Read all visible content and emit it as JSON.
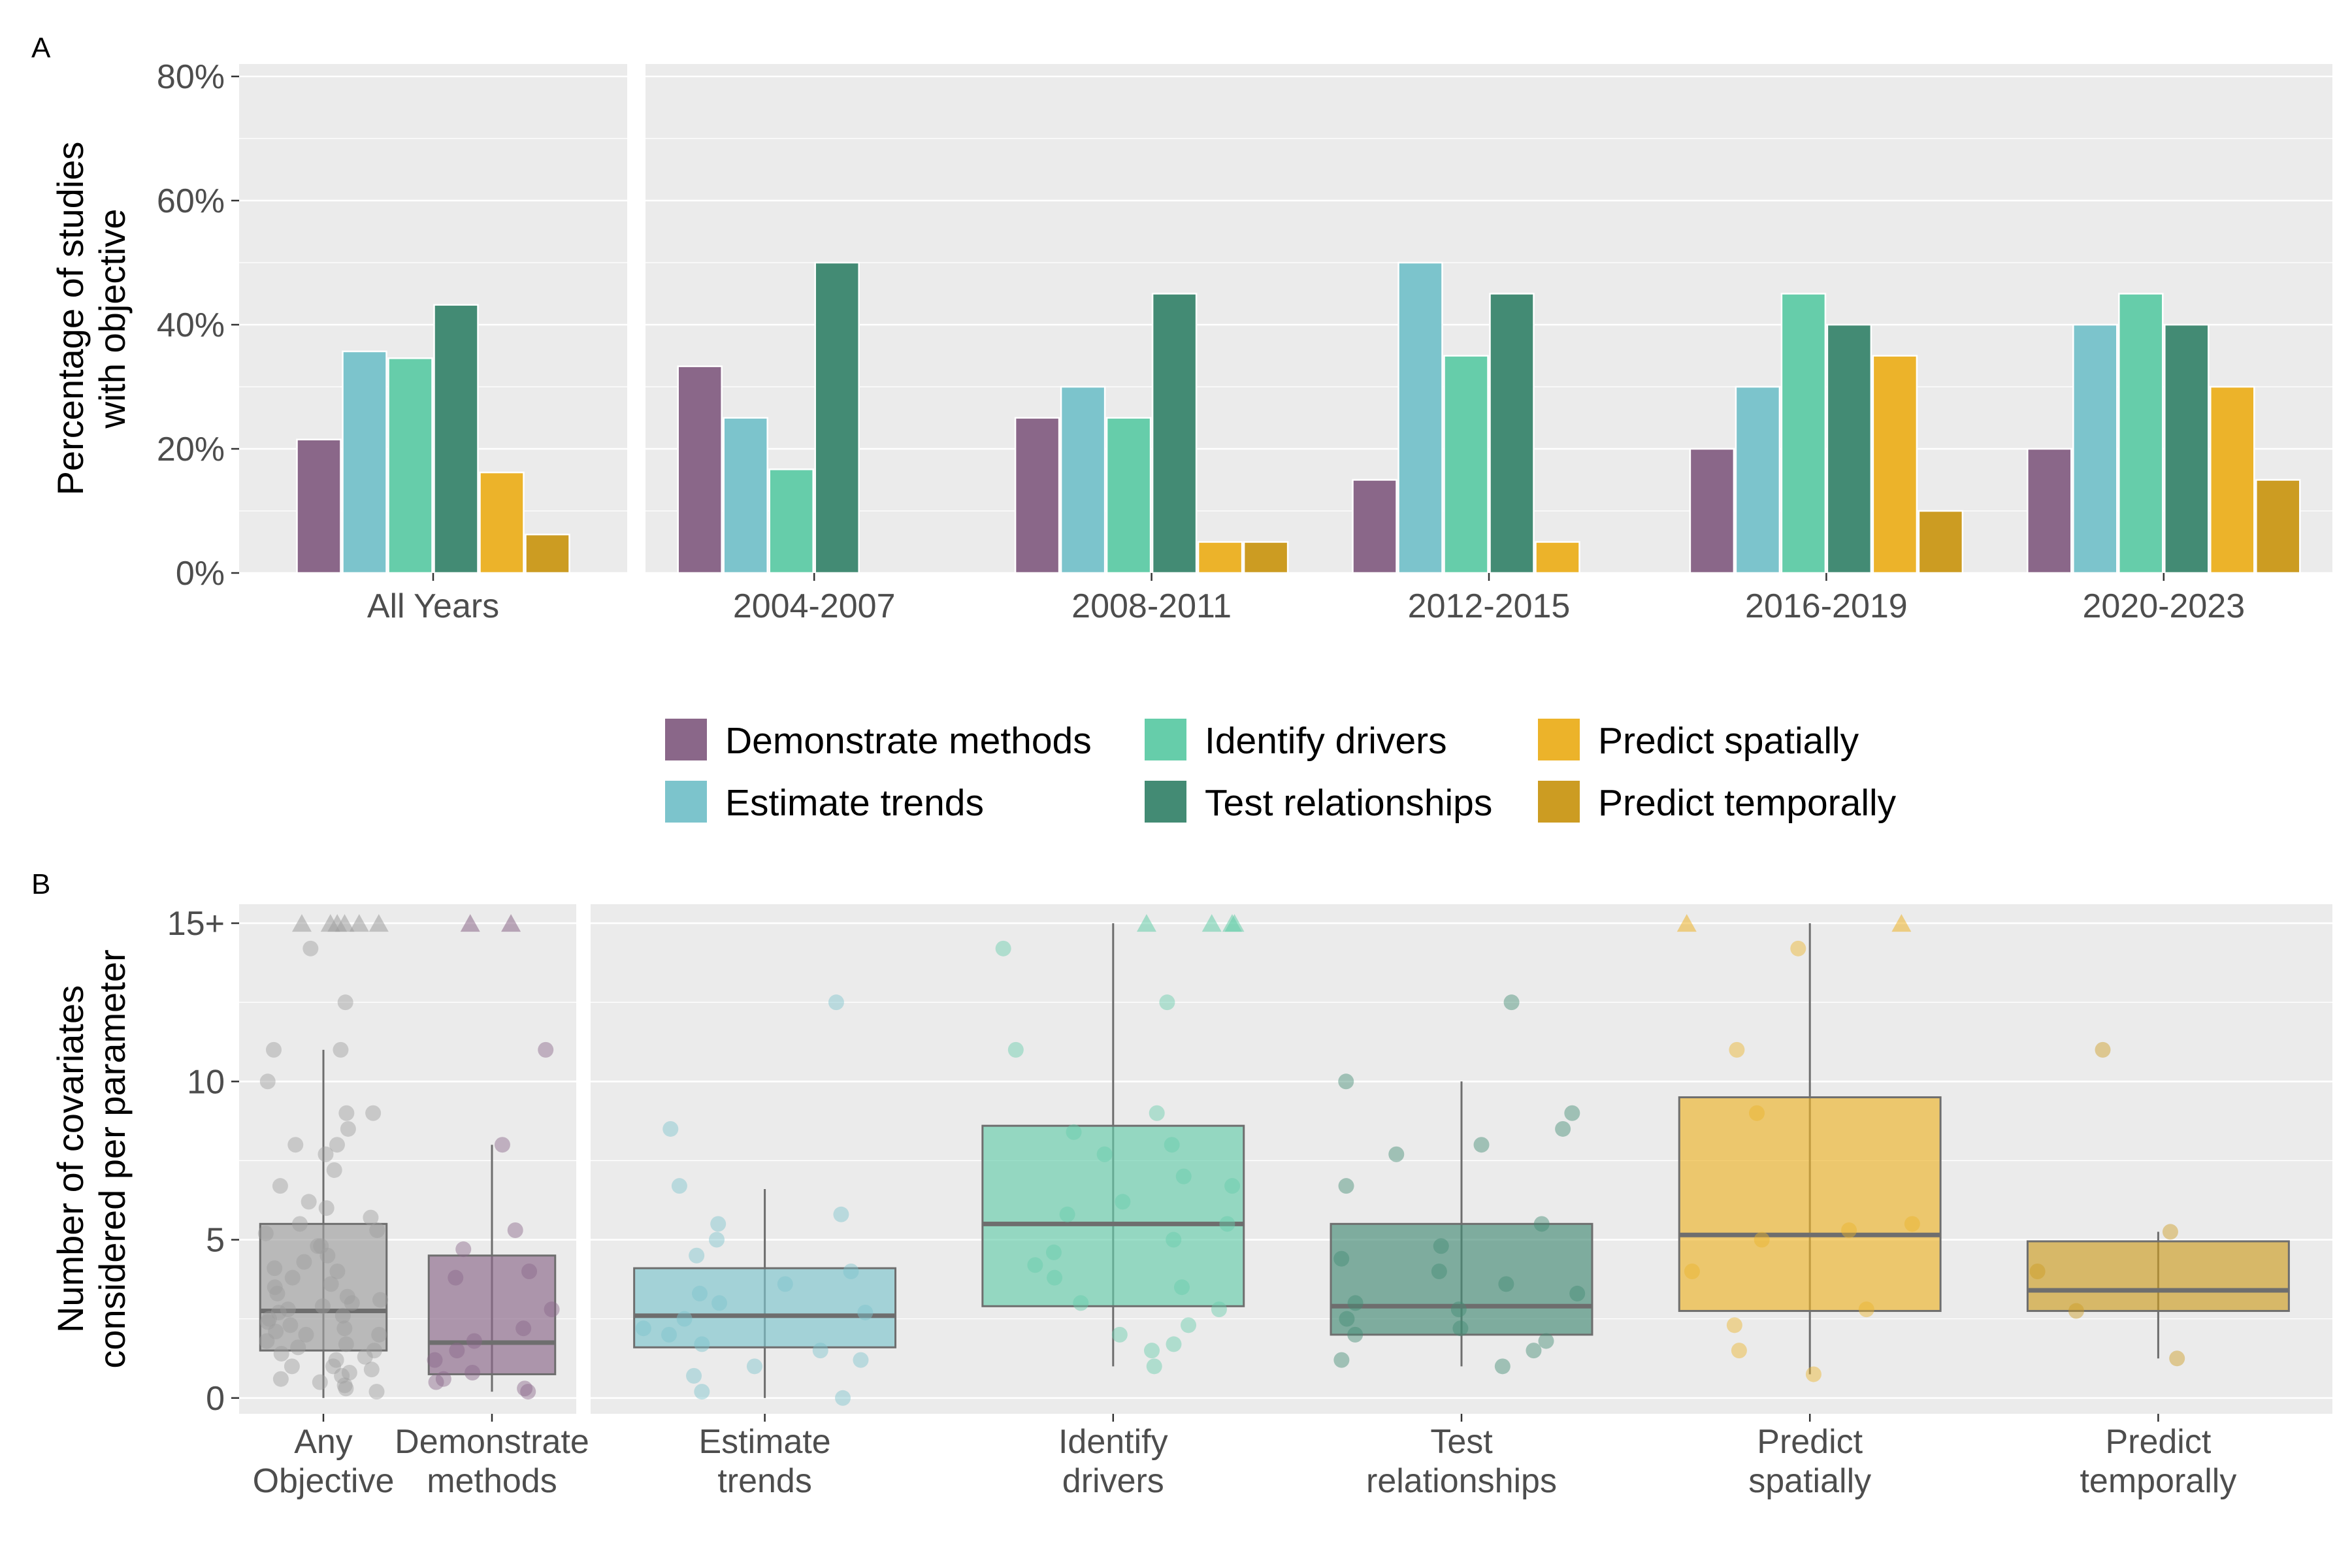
{
  "colors": {
    "Demonstrate methods": "#8a6789",
    "Estimate trends": "#7cc4cc",
    "Identify drivers": "#66cdaa",
    "Test relationships": "#438b74",
    "Predict spatially": "#ecb32a",
    "Predict temporally": "#cc9c22",
    "Any Objective": "#9e9e9e"
  },
  "legend": {
    "items": [
      "Demonstrate methods",
      "Estimate trends",
      "Identify drivers",
      "Test relationships",
      "Predict spatially",
      "Predict temporally"
    ]
  },
  "chart_data": [
    {
      "type": "bar",
      "panel_label": "A",
      "ylabel": "Percentage of studies\nwith objective",
      "xlabel": "",
      "ylim": [
        0,
        82
      ],
      "yticks": [
        "0%",
        "20%",
        "40%",
        "60%",
        "80%"
      ],
      "grid": true,
      "legend_position": "bottom",
      "facets": [
        {
          "categories": [
            "All Years"
          ],
          "series": [
            {
              "name": "Demonstrate methods",
              "values": [
                21.5
              ]
            },
            {
              "name": "Estimate trends",
              "values": [
                35.7
              ]
            },
            {
              "name": "Identify drivers",
              "values": [
                34.6
              ]
            },
            {
              "name": "Test relationships",
              "values": [
                43.2
              ]
            },
            {
              "name": "Predict spatially",
              "values": [
                16.2
              ]
            },
            {
              "name": "Predict temporally",
              "values": [
                6.2
              ]
            }
          ]
        },
        {
          "categories": [
            "2004-2007",
            "2008-2011",
            "2012-2015",
            "2016-2019",
            "2020-2023"
          ],
          "series": [
            {
              "name": "Demonstrate methods",
              "values": [
                33.3,
                25,
                15,
                20,
                20
              ]
            },
            {
              "name": "Estimate trends",
              "values": [
                25,
                30,
                50,
                30,
                40
              ]
            },
            {
              "name": "Identify drivers",
              "values": [
                16.7,
                25,
                35,
                45,
                45
              ]
            },
            {
              "name": "Test relationships",
              "values": [
                50,
                45,
                45,
                40,
                40
              ]
            },
            {
              "name": "Predict spatially",
              "values": [
                0,
                5,
                5,
                35,
                30
              ]
            },
            {
              "name": "Predict temporally",
              "values": [
                0,
                5,
                0,
                10,
                15
              ]
            }
          ]
        }
      ]
    },
    {
      "type": "box",
      "panel_label": "B",
      "ylabel": "Number of covariates\nconsidered per parameter",
      "xlabel": "",
      "ylim": [
        -0.5,
        15.6
      ],
      "yticks": [
        "0",
        "5",
        "10",
        "15+"
      ],
      "grid": true,
      "facets": [
        {
          "groups": [
            {
              "name": "Any Objective",
              "label": "Any\nObjective",
              "q1": 1.5,
              "median": 2.75,
              "q3": 5.5,
              "whisker_low": 0,
              "whisker_high": 11,
              "points": [
                0.2,
                0.5,
                0.8,
                1,
                1.2,
                1.5,
                1.8,
                2,
                2.2,
                2.5,
                2.8,
                3,
                3.3,
                3.6,
                4,
                4.3,
                4.8,
                5.3,
                5.7,
                6.2,
                6.7,
                7.2,
                8,
                8.5,
                9,
                11,
                12.5,
                14.2,
                0.3,
                0.6,
                1,
                1.3,
                1.7,
                2.1,
                2.4,
                2.9,
                3.2,
                3.8,
                4.5,
                5.2,
                6,
                7.7,
                9,
                10,
                11,
                0.4,
                0.9,
                1.6,
                2,
                2.6,
                3.1,
                4.1,
                5.5,
                0.7,
                1.4,
                2.3,
                2.7,
                3.5,
                4.8,
                8
              ],
              "capped_points": 6
            },
            {
              "name": "Demonstrate methods",
              "label": "Demonstrate\nmethods",
              "q1": 0.75,
              "median": 1.75,
              "q3": 4.5,
              "whisker_low": 0.2,
              "whisker_high": 8,
              "points": [
                0.2,
                0.3,
                0.5,
                0.6,
                0.8,
                1.2,
                1.5,
                1.8,
                2.2,
                2.8,
                3.8,
                4,
                4.7,
                5.3,
                8,
                11
              ],
              "capped_points": 2
            }
          ]
        },
        {
          "groups": [
            {
              "name": "Estimate trends",
              "label": "Estimate\ntrends",
              "q1": 1.6,
              "median": 2.6,
              "q3": 4.1,
              "whisker_low": 0,
              "whisker_high": 6.6,
              "points": [
                0,
                0.2,
                0.7,
                1,
                1.2,
                1.5,
                1.7,
                2,
                2.2,
                2.5,
                2.7,
                3,
                3.3,
                3.6,
                4,
                4.5,
                5,
                5.5,
                5.8,
                6.7,
                8.5,
                12.5
              ],
              "capped_points": 0
            },
            {
              "name": "Identify drivers",
              "label": "Identify\ndrivers",
              "q1": 2.9,
              "median": 5.5,
              "q3": 8.6,
              "whisker_low": 1,
              "whisker_high": 15,
              "points": [
                1,
                1.5,
                1.7,
                2,
                2.3,
                2.8,
                3,
                3.5,
                3.8,
                4.2,
                4.6,
                5,
                5.5,
                5.8,
                6.2,
                6.7,
                7,
                7.7,
                8,
                8.4,
                9,
                11,
                12.5,
                14.2
              ],
              "capped_points": 4
            },
            {
              "name": "Test relationships",
              "label": "Test\nrelationships",
              "q1": 2,
              "median": 2.9,
              "q3": 5.5,
              "whisker_low": 1,
              "whisker_high": 10,
              "points": [
                1,
                1.2,
                1.5,
                1.8,
                2,
                2.2,
                2.5,
                2.8,
                3,
                3.3,
                3.6,
                4,
                4.4,
                4.8,
                5.5,
                6.7,
                7.7,
                8,
                8.5,
                9,
                10,
                12.5
              ],
              "capped_points": 0
            },
            {
              "name": "Predict spatially",
              "label": "Predict\nspatially",
              "q1": 2.75,
              "median": 5.15,
              "q3": 9.5,
              "whisker_low": 0.75,
              "whisker_high": 15,
              "points": [
                0.75,
                1.5,
                2.3,
                2.8,
                4,
                5,
                5.3,
                5.5,
                9,
                11,
                14.2
              ],
              "capped_points": 2
            },
            {
              "name": "Predict temporally",
              "label": "Predict\ntemporally",
              "q1": 2.75,
              "median": 3.4,
              "q3": 4.95,
              "whisker_low": 1.25,
              "whisker_high": 5.25,
              "points": [
                1.25,
                2.75,
                4,
                5.25,
                11
              ],
              "capped_points": 0
            }
          ]
        }
      ]
    }
  ]
}
